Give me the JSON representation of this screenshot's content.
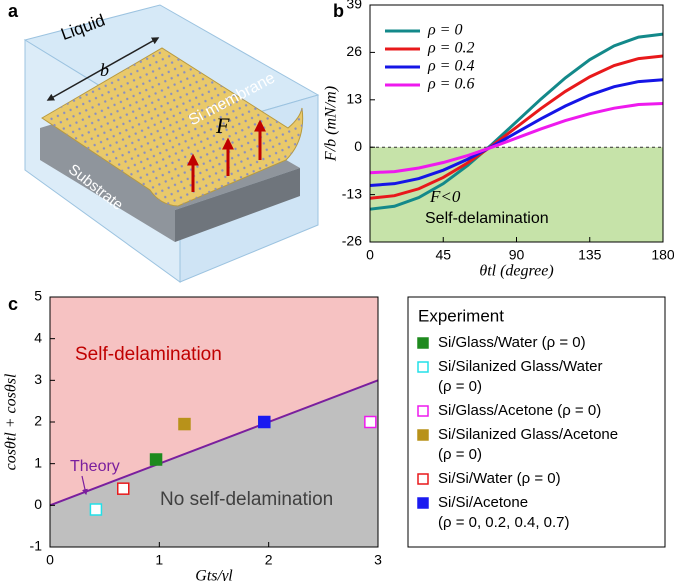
{
  "illustration": {
    "label": "a",
    "texts": [
      "Liquid",
      "b",
      "Si membrane",
      "F",
      "Substrate"
    ]
  },
  "chart_data": [
    {
      "type": "line",
      "label": "b",
      "ylabel": "F/b (mN/m)",
      "xlabel": "θtl (degree)",
      "x": [
        0,
        15,
        30,
        45,
        60,
        75,
        90,
        105,
        120,
        135,
        150,
        165,
        180
      ],
      "xlim": [
        0,
        180
      ],
      "xticks": [
        0,
        45,
        90,
        135,
        180
      ],
      "ylim": [
        -26,
        39
      ],
      "yticks": [
        -26,
        -13,
        0,
        13,
        26,
        39
      ],
      "shaded_region": {
        "from": -26,
        "to": 0,
        "color": "#c6e3a9"
      },
      "annotations": [
        "F<0",
        "Self-delamination"
      ],
      "series": [
        {
          "name": "ρ = 0",
          "color": "#13898a",
          "values": [
            -17,
            -16.2,
            -13.8,
            -10.0,
            -5.0,
            0.8,
            7,
            13.2,
            19,
            24.0,
            27.8,
            30.2,
            31
          ]
        },
        {
          "name": "ρ = 0.2",
          "color": "#e8191b",
          "values": [
            -14,
            -13.3,
            -11.4,
            -8.3,
            -4.3,
            0.4,
            5.5,
            10.6,
            15.3,
            19.3,
            22.4,
            24.3,
            25
          ]
        },
        {
          "name": "ρ = 0.4",
          "color": "#1515e6",
          "values": [
            -10.5,
            -10.0,
            -8.6,
            -6.3,
            -3.3,
            0.2,
            4,
            7.8,
            11.3,
            14.3,
            16.6,
            18.0,
            18.5
          ]
        },
        {
          "name": "ρ = 0.6",
          "color": "#ee1aee",
          "values": [
            -7,
            -6.7,
            -5.7,
            -4.2,
            -2.3,
            0.0,
            2.5,
            5.0,
            7.3,
            9.2,
            10.7,
            11.7,
            12
          ]
        }
      ]
    },
    {
      "type": "scatter",
      "label": "c",
      "xlabel": "Gts/γl",
      "ylabel": "cosθtl + cosθsl",
      "xlim": [
        0,
        3
      ],
      "xticks": [
        0,
        1,
        2,
        3
      ],
      "ylim": [
        -1,
        5
      ],
      "yticks": [
        -1,
        0,
        1,
        2,
        3,
        4,
        5
      ],
      "legend_title": "Experiment",
      "annotations": [
        "Self-delamination",
        "No self-delamination"
      ],
      "theory": {
        "name": "Theory",
        "x": [
          0,
          3
        ],
        "y": [
          0,
          3
        ],
        "color": "#7a1f9e",
        "above_color": "#f6c2c2",
        "below_color": "#bfbfbf"
      },
      "series": [
        {
          "name": "Si/Glass/Water (ρ = 0)",
          "color": "#1e8a1e",
          "filled": true,
          "x": [
            0.97
          ],
          "y": [
            1.1
          ]
        },
        {
          "name": "Si/Silanized Glass/Water (ρ = 0)",
          "color": "#22e0e8",
          "filled": false,
          "x": [
            0.42
          ],
          "y": [
            -0.1
          ]
        },
        {
          "name": "Si/Glass/Acetone (ρ = 0)",
          "color": "#ee1aee",
          "filled": false,
          "x": [
            2.93
          ],
          "y": [
            2.0
          ]
        },
        {
          "name": "Si/Silanized Glass/Acetone (ρ = 0)",
          "color": "#b8921a",
          "filled": true,
          "x": [
            1.23
          ],
          "y": [
            1.95
          ]
        },
        {
          "name": "Si/Si/Water (ρ = 0)",
          "color": "#e8191b",
          "filled": false,
          "x": [
            0.67
          ],
          "y": [
            0.4
          ]
        },
        {
          "name": "Si/Si/Acetone (ρ = 0, 0.2, 0.4, 0.7)",
          "color": "#1a1af0",
          "filled": true,
          "x": [
            1.96
          ],
          "y": [
            2.0
          ]
        }
      ]
    }
  ]
}
